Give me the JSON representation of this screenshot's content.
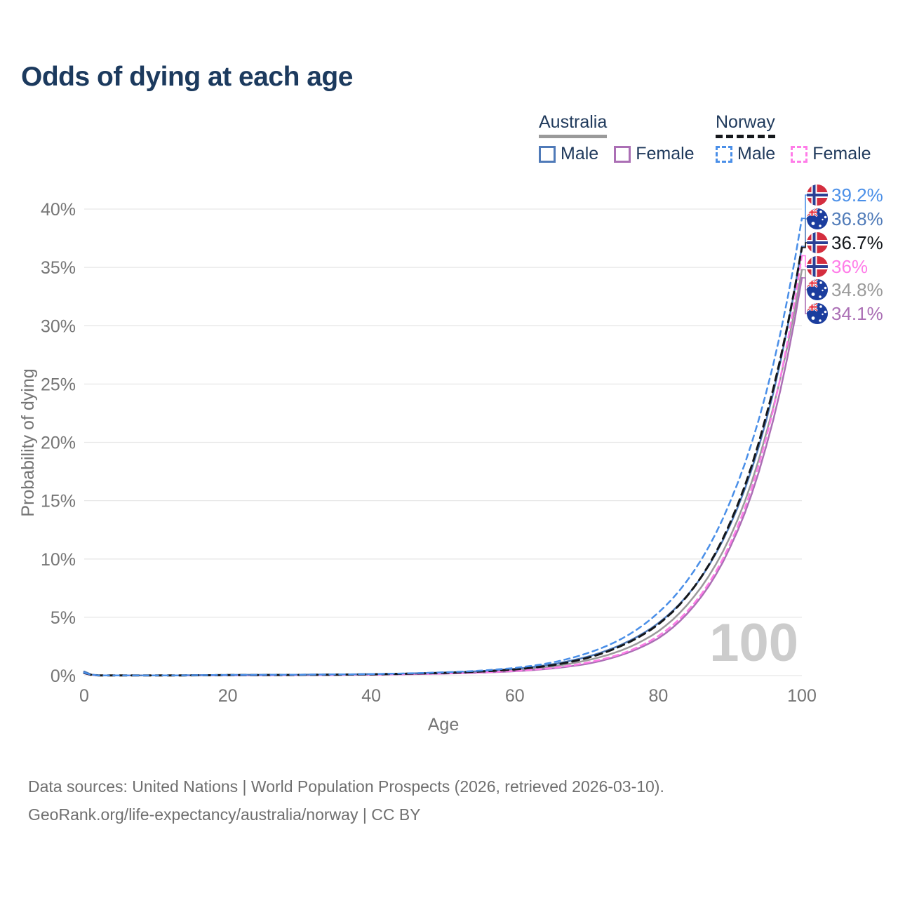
{
  "title": "Odds of dying at each age",
  "legend": {
    "groups": [
      {
        "id": "australia",
        "label": "Australia",
        "line_style": "solid",
        "line_color": "#9a9a9a",
        "items": [
          {
            "label": "Male",
            "color": "#4f7ab8",
            "dashed": false
          },
          {
            "label": "Female",
            "color": "#ab6fb5",
            "dashed": false
          }
        ]
      },
      {
        "id": "norway",
        "label": "Norway",
        "line_style": "dashed",
        "line_color": "#15181c",
        "items": [
          {
            "label": "Male",
            "color": "#4a8fe8",
            "dashed": true
          },
          {
            "label": "Female",
            "color": "#ff7ce8",
            "dashed": true
          }
        ]
      }
    ]
  },
  "watermark": "100",
  "footer": {
    "line1": "Data sources: United Nations | World Population Prospects (2026, retrieved 2026-03-10).",
    "line2": "GeoRank.org/life-expectancy/australia/norway | CC BY"
  },
  "colors": {
    "title": "#1c3a5e",
    "legend_text": "#203a5c",
    "axis_text": "#757575",
    "gridline": "#e7e7e7",
    "watermark": "#cccccc",
    "footer_text": "#6f6f6f",
    "australia_male": "#4f7ab8",
    "australia_female": "#ab6fb5",
    "australia_both": "#9a9a9a",
    "norway_male": "#4a8fe8",
    "norway_female": "#ff7ce8",
    "norway_both": "#15181c",
    "norway_flag_red": "#d42e3f",
    "norway_flag_blue": "#2b3f94",
    "australia_flag_blue": "#1b3d9e"
  },
  "chart_data": {
    "type": "line",
    "title": "Odds of dying at each age",
    "xlabel": "Age",
    "ylabel": "Probability of dying",
    "xlim": [
      0,
      100
    ],
    "ylim": [
      0,
      40
    ],
    "x_ticks": [
      0,
      20,
      40,
      60,
      80,
      100
    ],
    "y_ticks": [
      {
        "value": 0,
        "label": "0%"
      },
      {
        "value": 5,
        "label": "5%"
      },
      {
        "value": 10,
        "label": "10%"
      },
      {
        "value": 15,
        "label": "15%"
      },
      {
        "value": 20,
        "label": "20%"
      },
      {
        "value": 25,
        "label": "25%"
      },
      {
        "value": 30,
        "label": "30%"
      },
      {
        "value": 35,
        "label": "35%"
      },
      {
        "value": 40,
        "label": "40%"
      }
    ],
    "grid": "horizontal",
    "legend_position": "top-right",
    "hover_age_indicator": "100",
    "ages": [
      0,
      2,
      5,
      10,
      15,
      20,
      25,
      30,
      35,
      40,
      45,
      50,
      55,
      60,
      65,
      70,
      75,
      80,
      85,
      90,
      95,
      100
    ],
    "series": [
      {
        "id": "au-both",
        "name": "Australia",
        "country": "australia",
        "sex": "both",
        "color": "#9a9a9a",
        "dashed": false,
        "width": 2.5,
        "dash": "",
        "end_value": 34.8,
        "end_label": "34.8%",
        "values": [
          0.33,
          0.02,
          0.01,
          0.01,
          0.025,
          0.045,
          0.05,
          0.06,
          0.08,
          0.1,
          0.15,
          0.21,
          0.31,
          0.47,
          0.77,
          1.3,
          2.2,
          3.8,
          6.8,
          11.9,
          20.7,
          34.8
        ]
      },
      {
        "id": "au-female",
        "name": "Australia Female",
        "country": "australia",
        "sex": "female",
        "color": "#ab6fb5",
        "dashed": false,
        "width": 2.5,
        "dash": "",
        "end_value": 34.1,
        "end_label": "34.1%",
        "values": [
          0.3,
          0.02,
          0.01,
          0.01,
          0.02,
          0.03,
          0.03,
          0.04,
          0.06,
          0.08,
          0.12,
          0.17,
          0.25,
          0.37,
          0.6,
          1.0,
          1.8,
          3.2,
          6.0,
          11.0,
          19.6,
          34.1
        ]
      },
      {
        "id": "au-male",
        "name": "Australia Male",
        "country": "australia",
        "sex": "male",
        "color": "#4f7ab8",
        "dashed": false,
        "width": 2.5,
        "dash": "",
        "end_value": 36.8,
        "end_label": "36.8%",
        "values": [
          0.35,
          0.02,
          0.01,
          0.01,
          0.03,
          0.06,
          0.07,
          0.08,
          0.1,
          0.13,
          0.18,
          0.26,
          0.38,
          0.58,
          0.95,
          1.6,
          2.7,
          4.5,
          7.6,
          12.9,
          21.8,
          36.8
        ]
      },
      {
        "id": "no-female",
        "name": "Norway Female",
        "country": "norway",
        "sex": "female",
        "color": "#ff7ce8",
        "dashed": true,
        "width": 2.5,
        "dash": "8 6",
        "end_value": 36.0,
        "end_label": "36%",
        "values": [
          0.2,
          0.01,
          0.01,
          0.01,
          0.02,
          0.03,
          0.03,
          0.04,
          0.06,
          0.08,
          0.12,
          0.18,
          0.26,
          0.4,
          0.64,
          1.1,
          1.9,
          3.4,
          6.2,
          11.3,
          20.3,
          36.0
        ]
      },
      {
        "id": "no-both",
        "name": "Norway",
        "country": "norway",
        "sex": "both",
        "color": "#15181c",
        "dashed": true,
        "width": 3,
        "dash": "10 7",
        "end_value": 36.7,
        "end_label": "36.7%",
        "values": [
          0.22,
          0.02,
          0.01,
          0.01,
          0.025,
          0.04,
          0.05,
          0.06,
          0.08,
          0.11,
          0.16,
          0.23,
          0.34,
          0.53,
          0.87,
          1.5,
          2.6,
          4.4,
          7.6,
          13.1,
          22.2,
          36.7
        ]
      },
      {
        "id": "no-male",
        "name": "Norway Male",
        "country": "norway",
        "sex": "male",
        "color": "#4a8fe8",
        "dashed": true,
        "width": 2.5,
        "dash": "8 6",
        "end_value": 39.2,
        "end_label": "39.2%",
        "values": [
          0.25,
          0.02,
          0.01,
          0.01,
          0.03,
          0.05,
          0.06,
          0.08,
          0.1,
          0.13,
          0.19,
          0.28,
          0.42,
          0.66,
          1.1,
          1.9,
          3.2,
          5.4,
          9.0,
          14.9,
          24.2,
          39.2
        ]
      }
    ],
    "end_labels": [
      {
        "series": "no-male",
        "label": "39.2%"
      },
      {
        "series": "au-male",
        "label": "36.8%"
      },
      {
        "series": "no-both",
        "label": "36.7%"
      },
      {
        "series": "no-female",
        "label": "36%"
      },
      {
        "series": "au-both",
        "label": "34.8%"
      },
      {
        "series": "au-female",
        "label": "34.1%"
      }
    ]
  }
}
